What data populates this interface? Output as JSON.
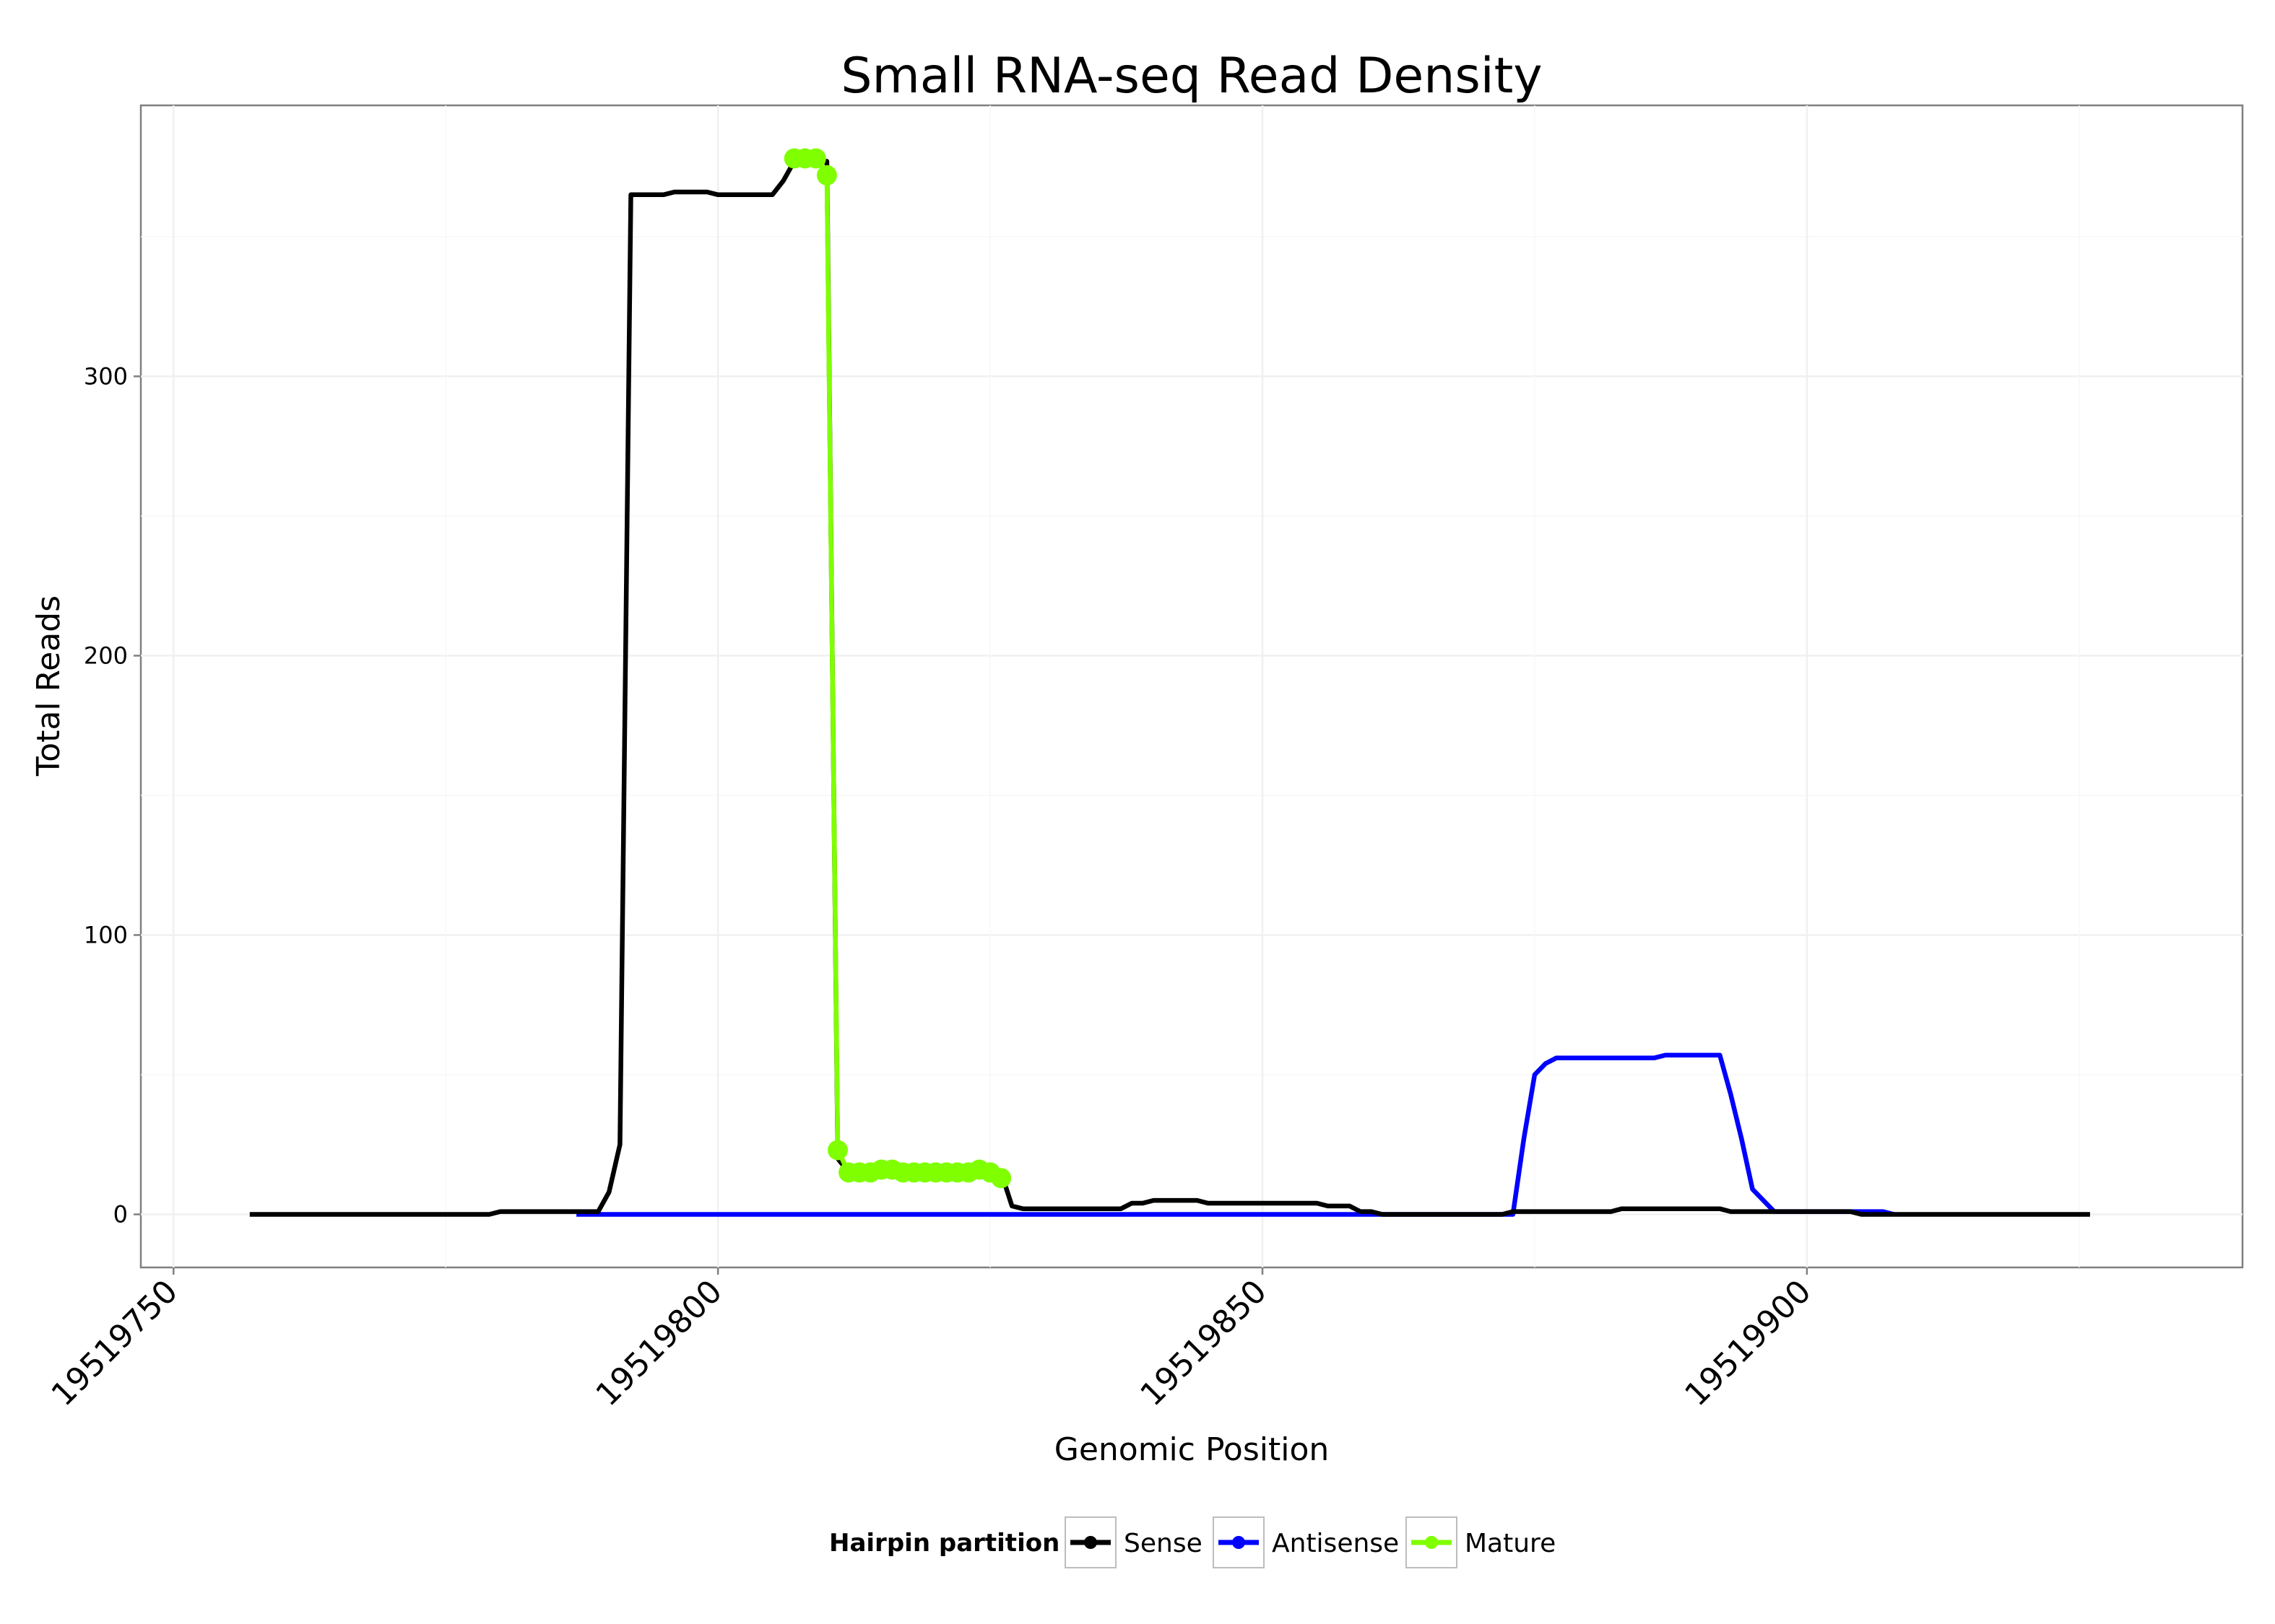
{
  "chart_data": {
    "type": "line",
    "title": "Small RNA-seq Read Density",
    "xlabel": "Genomic Position",
    "ylabel": "Total Reads",
    "xlim": [
      19519747,
      19519940
    ],
    "ylim": [
      -19,
      397
    ],
    "x_ticks": [
      19519750,
      19519800,
      19519850,
      19519900
    ],
    "x_tick_labels": [
      "19519750",
      "19519800",
      "19519850",
      "19519900"
    ],
    "y_ticks": [
      0,
      100,
      200,
      300
    ],
    "y_tick_labels": [
      "0",
      "100",
      "200",
      "300"
    ],
    "grid": true,
    "legend": {
      "title": "Hairpin partition",
      "position": "bottom",
      "entries": [
        "Sense",
        "Antisense",
        "Mature"
      ]
    },
    "series": [
      {
        "name": "Sense",
        "color": "#000000",
        "style": "line",
        "points": [
          [
            19519757,
            0
          ],
          [
            19519770,
            0
          ],
          [
            19519779,
            0
          ],
          [
            19519780,
            1
          ],
          [
            19519789,
            1
          ],
          [
            19519790,
            8
          ],
          [
            19519791,
            25
          ],
          [
            19519792,
            365
          ],
          [
            19519795,
            365
          ],
          [
            19519796,
            366
          ],
          [
            19519799,
            366
          ],
          [
            19519800,
            365
          ],
          [
            19519805,
            365
          ],
          [
            19519806,
            370
          ],
          [
            19519807,
            377
          ],
          [
            19519810,
            377
          ],
          [
            19519811,
            20
          ],
          [
            19519812,
            15
          ],
          [
            19519826,
            15
          ],
          [
            19519827,
            3
          ],
          [
            19519828,
            2
          ],
          [
            19519837,
            2
          ],
          [
            19519838,
            4
          ],
          [
            19519839,
            4
          ],
          [
            19519840,
            5
          ],
          [
            19519844,
            5
          ],
          [
            19519845,
            4
          ],
          [
            19519855,
            4
          ],
          [
            19519856,
            3
          ],
          [
            19519858,
            3
          ],
          [
            19519859,
            1
          ],
          [
            19519860,
            1
          ],
          [
            19519861,
            0
          ],
          [
            19519872,
            0
          ],
          [
            19519873,
            1
          ],
          [
            19519882,
            1
          ],
          [
            19519883,
            2
          ],
          [
            19519892,
            2
          ],
          [
            19519893,
            1
          ],
          [
            19519904,
            1
          ],
          [
            19519905,
            0
          ],
          [
            19519926,
            0
          ]
        ]
      },
      {
        "name": "Antisense",
        "color": "#0000ff",
        "style": "line",
        "points": [
          [
            19519787,
            0
          ],
          [
            19519873,
            0
          ],
          [
            19519874,
            27
          ],
          [
            19519875,
            50
          ],
          [
            19519876,
            54
          ],
          [
            19519877,
            56
          ],
          [
            19519886,
            56
          ],
          [
            19519887,
            57
          ],
          [
            19519892,
            57
          ],
          [
            19519893,
            43
          ],
          [
            19519894,
            27
          ],
          [
            19519895,
            9
          ],
          [
            19519896,
            5
          ],
          [
            19519897,
            1
          ],
          [
            19519907,
            1
          ],
          [
            19519908,
            0
          ]
        ]
      },
      {
        "name": "Mature",
        "color": "#7fff00",
        "style": "line+points",
        "points": [
          [
            19519807,
            378
          ],
          [
            19519808,
            378
          ],
          [
            19519809,
            378
          ],
          [
            19519810,
            372
          ],
          [
            19519811,
            23
          ],
          [
            19519812,
            15
          ],
          [
            19519813,
            15
          ],
          [
            19519814,
            15
          ],
          [
            19519815,
            16
          ],
          [
            19519816,
            16
          ],
          [
            19519817,
            15
          ],
          [
            19519818,
            15
          ],
          [
            19519819,
            15
          ],
          [
            19519820,
            15
          ],
          [
            19519821,
            15
          ],
          [
            19519822,
            15
          ],
          [
            19519823,
            15
          ],
          [
            19519824,
            16
          ],
          [
            19519825,
            15
          ],
          [
            19519826,
            13
          ]
        ]
      }
    ]
  }
}
